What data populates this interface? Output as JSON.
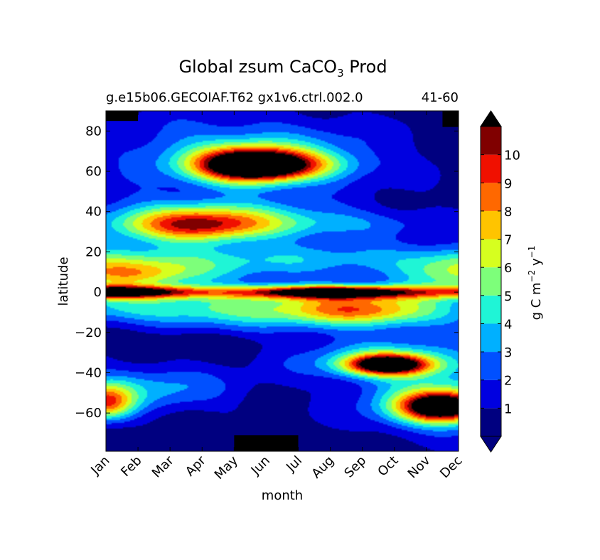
{
  "chart_data": {
    "type": "heatmap",
    "title": {
      "main": "Global zsum CaCO",
      "sub": "3",
      "suffix": " Prod"
    },
    "subtitle_left": "g.e15b06.GECOIAF.T62 gx1v6.ctrl.002.0",
    "subtitle_right": "41-60",
    "xlabel": "month",
    "ylabel": "latitude",
    "x_ticks": [
      "Jan",
      "Feb",
      "Mar",
      "Apr",
      "May",
      "Jun",
      "Jul",
      "Aug",
      "Sep",
      "Oct",
      "Nov",
      "Dec"
    ],
    "y_ticks": [
      "80",
      "60",
      "40",
      "20",
      "0",
      "−20",
      "−40",
      "−60"
    ],
    "y_tick_values": [
      80,
      60,
      40,
      20,
      0,
      -20,
      -40,
      -60
    ],
    "ylim": [
      -79,
      90
    ],
    "xlim": [
      0,
      11
    ],
    "colorbar": {
      "label_parts": {
        "a": "g C m",
        "b": "−2",
        "c": " y",
        "d": "−1"
      },
      "tick_labels": [
        "1",
        "2",
        "3",
        "4",
        "5",
        "6",
        "7",
        "8",
        "9",
        "10"
      ],
      "levels": [
        0,
        1,
        2,
        3,
        4,
        5,
        6,
        7,
        8,
        9,
        10,
        11
      ],
      "colors": [
        "#000080",
        "#0000e0",
        "#0050ff",
        "#00b0ff",
        "#1ff5d6",
        "#7dff7a",
        "#d6ff1f",
        "#ffc400",
        "#ff6800",
        "#f01000",
        "#800000"
      ],
      "under_color": "#000080",
      "over_color": "#000000"
    },
    "landmask_color": "#000000",
    "blobs": [
      {
        "x": 5.5,
        "y": 20,
        "sx": 7,
        "sy": 60,
        "v": 0.3,
        "comment": "none"
      },
      {
        "x": 0,
        "y": 10,
        "sx": 2.2,
        "sy": 7,
        "v": 5.2
      },
      {
        "x": 1,
        "y": 9,
        "sx": 1.1,
        "sy": 3.5,
        "v": 1.5
      },
      {
        "x": 11.2,
        "y": 10,
        "sx": 1.3,
        "sy": 7,
        "v": 4.5
      },
      {
        "x": 5.5,
        "y": 16,
        "sx": 6,
        "sy": 6,
        "v": 2.8
      },
      {
        "x": 2.8,
        "y": 33,
        "sx": 1.6,
        "sy": 6,
        "v": 6.5
      },
      {
        "x": 2.8,
        "y": 38,
        "sx": 3,
        "sy": 8,
        "v": 2.5
      },
      {
        "x": 6,
        "y": 34,
        "sx": 3,
        "sy": 5,
        "v": 2.3
      },
      {
        "x": 4.5,
        "y": 63,
        "sx": 1.2,
        "sy": 6,
        "v": 11
      },
      {
        "x": 5.5,
        "y": 63,
        "sx": 1.5,
        "sy": 5,
        "v": 5
      },
      {
        "x": 4.2,
        "y": 70,
        "sx": 3,
        "sy": 12,
        "v": 3
      },
      {
        "x": 8,
        "y": -9,
        "sx": 1.5,
        "sy": 5,
        "v": 4.2
      },
      {
        "x": 7,
        "y": -8,
        "sx": 4,
        "sy": 8,
        "v": 4.0
      },
      {
        "x": 1,
        "y": -8,
        "sx": 3,
        "sy": 5,
        "v": 2.5
      },
      {
        "x": 8.8,
        "y": -36,
        "sx": 0.9,
        "sy": 3.5,
        "v": 11
      },
      {
        "x": 9,
        "y": -34,
        "sx": 2,
        "sy": 7,
        "v": 4
      },
      {
        "x": 10.5,
        "y": -57,
        "sx": 0.9,
        "sy": 5,
        "v": 11
      },
      {
        "x": 10.3,
        "y": -55,
        "sx": 1.6,
        "sy": 10,
        "v": 4.5
      },
      {
        "x": 0,
        "y": -55,
        "sx": 0.6,
        "sy": 6,
        "v": 7
      },
      {
        "x": 1,
        "y": -48,
        "sx": 2,
        "sy": 8,
        "v": 3
      },
      {
        "x": 2,
        "y": -25,
        "sx": 1.5,
        "sy": 4,
        "v": -1
      }
    ],
    "equator_band": {
      "y": 0,
      "sy": 2.2,
      "v": 11
    },
    "mask_rects": [
      {
        "x0": 0,
        "x1": 1,
        "y0": 85,
        "y1": 90
      },
      {
        "x0": 10.5,
        "x1": 11,
        "y0": 82,
        "y1": 90
      },
      {
        "x0": 4,
        "x1": 6,
        "y0": -79,
        "y1": -71
      }
    ]
  }
}
